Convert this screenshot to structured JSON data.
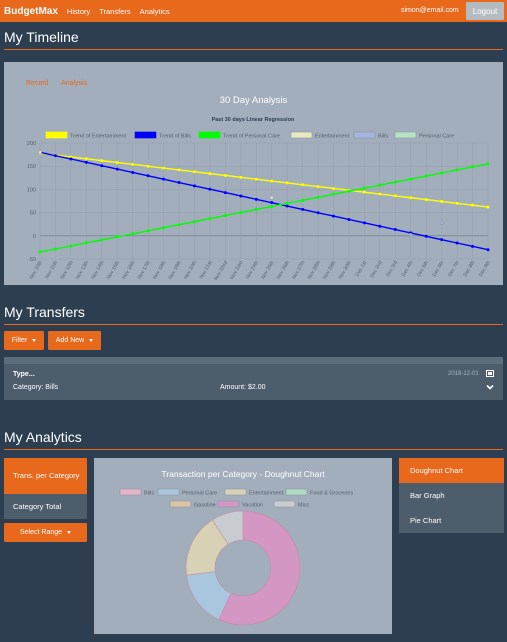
{
  "navbar": {
    "brand": "BudgetMax",
    "links": [
      "History",
      "Transfers",
      "Analytics"
    ],
    "email": "simon@email.com",
    "logout_label": "Logout"
  },
  "timeline": {
    "heading": "My Timeline",
    "tabs": [
      "Record",
      "Analysis"
    ],
    "panel_title": "30 Day Analysis"
  },
  "chart_data": [
    {
      "type": "line",
      "title": "Past 30 days Linear Regression",
      "categories": [
        "Nov 10th",
        "Nov 11th",
        "Nov 12th",
        "Nov 13th",
        "Nov 14th",
        "Nov 15th",
        "Nov 16th",
        "Nov 17th",
        "Nov 18th",
        "Nov 19th",
        "Nov 20th",
        "Nov 21st",
        "Nov 22nd",
        "Nov 23rd",
        "Nov 24th",
        "Nov 25th",
        "Nov 26th",
        "Nov 27th",
        "Nov 28th",
        "Nov 29th",
        "Nov 30th",
        "Dec 1st",
        "Dec 2nd",
        "Dec 3rd",
        "Dec 4th",
        "Dec 5th",
        "Dec 6th",
        "Dec 7th",
        "Dec 8th",
        "Dec 9th"
      ],
      "ylim": [
        -50,
        200
      ],
      "yticks": [
        -50,
        0,
        50,
        100,
        150,
        200
      ],
      "grid": true,
      "legend_position": "top",
      "series": [
        {
          "name": "Trend of Entertainment",
          "color": "#ffff00",
          "start": 178,
          "end": 62,
          "kind": "trend"
        },
        {
          "name": "Trend of Bills",
          "color": "#0000ff",
          "start": 180,
          "end": -30,
          "kind": "trend"
        },
        {
          "name": "Trend of Personal Care",
          "color": "#00ff00",
          "start": -35,
          "end": 155,
          "kind": "trend"
        },
        {
          "name": "Entertainment",
          "color": "#e8e8c0",
          "kind": "points",
          "points": [
            [
              0,
              180
            ],
            [
              15,
              82
            ]
          ]
        },
        {
          "name": "Bills",
          "color": "#a7b4e0",
          "kind": "points",
          "points": [
            [
              24,
              2
            ],
            [
              26,
              28
            ]
          ]
        },
        {
          "name": "Personal Care",
          "color": "#b9e2c4",
          "kind": "points",
          "points": []
        }
      ]
    },
    {
      "type": "pie",
      "title": "Transaction per Category - Doughnut Chart",
      "legend_position": "top",
      "labels": [
        "Bills",
        "Personal Care",
        "Entertainment",
        "Food & Groceries",
        "Gasoline",
        "Vacation",
        "Misc"
      ],
      "colors": [
        "#e7b3c8",
        "#a8c6dd",
        "#d7d1b5",
        "#b0d9c2",
        "#dcc4a7",
        "#d497c4",
        "#c8ccd0"
      ],
      "values": [
        0,
        16,
        18,
        0,
        0,
        57,
        9
      ]
    }
  ],
  "transfers": {
    "heading": "My Transfers",
    "filter_label": "Filter",
    "add_label": "Add New",
    "item": {
      "type": "Type...",
      "category": "Category: Bills",
      "amount": "Amount: $2.00",
      "date": "2018-12-01"
    }
  },
  "analytics": {
    "heading": "My Analytics",
    "left_nav": [
      "Trans. per Category",
      "Category Total"
    ],
    "range_label": "Select Range",
    "right_nav": [
      "Doughnut Chart",
      "Bar Graph",
      "Pie Chart"
    ]
  },
  "colors": {
    "accent": "#e8681c",
    "background": "#2c3e50",
    "card": "#a2aebb",
    "panel": "#4e5d6c"
  }
}
